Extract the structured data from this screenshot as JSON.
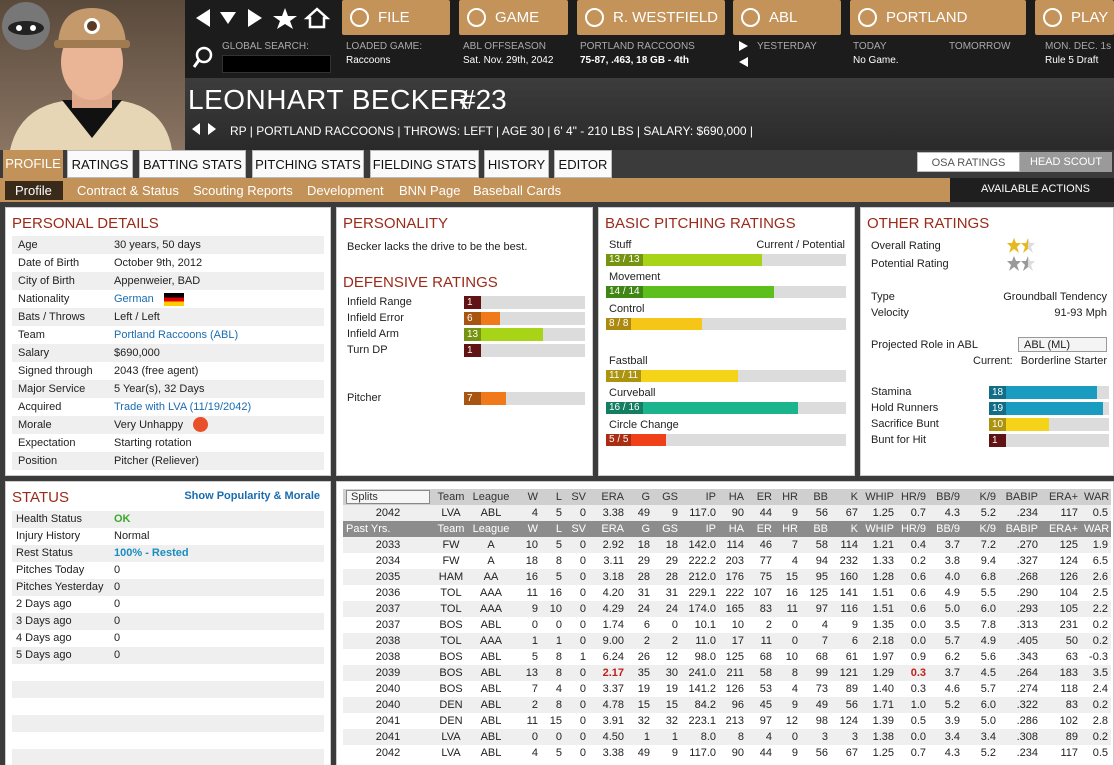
{
  "nav": {
    "buttons": [
      "FILE",
      "GAME",
      "R. WESTFIELD",
      "ABL",
      "PORTLAND",
      "PLAY"
    ]
  },
  "info": {
    "global_search": "GLOBAL SEARCH:",
    "loaded_game_label": "LOADED GAME:",
    "loaded_game": "Raccoons",
    "period": "ABL OFFSEASON",
    "date": "Sat. Nov. 29th, 2042",
    "team": "PORTLAND RACCOONS",
    "record": "75-87, .463, 18 GB - 4th",
    "yesterday": "YESTERDAY",
    "today": "TODAY",
    "today_note": "No Game.",
    "tomorrow": "TOMORROW",
    "next_date": "MON. DEC. 1s",
    "next_event": "Rule 5 Draft"
  },
  "player": {
    "name": "LEONHART BECKER",
    "number": "#23",
    "summary": "RP | PORTLAND RACCOONS | THROWS: LEFT | AGE 30 | 6' 4\" - 210 LBS | SALARY: $690,000 |"
  },
  "tabs": {
    "main": [
      "PROFILE",
      "RATINGS",
      "BATTING STATS",
      "PITCHING STATS",
      "FIELDING STATS",
      "HISTORY",
      "EDITOR"
    ],
    "right": [
      "OSA RATINGS",
      "HEAD SCOUT"
    ],
    "sub": [
      "Profile",
      "Contract & Status",
      "Scouting Reports",
      "Development",
      "BNN Page",
      "Baseball Cards"
    ],
    "actions": "AVAILABLE ACTIONS"
  },
  "personal_details": {
    "title": "PERSONAL DETAILS",
    "rows": [
      [
        "Age",
        "30 years, 50 days"
      ],
      [
        "Date of Birth",
        "October 9th, 2012"
      ],
      [
        "City of Birth",
        "Appenweier, BAD"
      ],
      [
        "Nationality",
        "German"
      ],
      [
        "Bats / Throws",
        "Left / Left"
      ],
      [
        "Team",
        "Portland Raccoons (ABL)"
      ],
      [
        "Salary",
        "$690,000"
      ],
      [
        "Signed through",
        "2043 (free agent)"
      ],
      [
        "Major Service",
        "5 Year(s), 32 Days"
      ],
      [
        "Acquired",
        "Trade with LVA (11/19/2042)"
      ],
      [
        "Morale",
        "Very Unhappy"
      ],
      [
        "Expectation",
        "Starting rotation"
      ],
      [
        "Position",
        "Pitcher (Reliever)"
      ]
    ]
  },
  "personality": {
    "title": "PERSONALITY",
    "text": "Becker lacks the drive to be the best."
  },
  "rating_range": [
    0,
    20
  ],
  "defensive_ratings": {
    "title": "DEFENSIVE RATINGS",
    "rows": [
      {
        "name": "Infield Range",
        "value": 1,
        "color": "#8b1a1a"
      },
      {
        "name": "Infield Error",
        "value": 6,
        "color": "#f07a1a"
      },
      {
        "name": "Infield Arm",
        "value": 13,
        "color": "#a8d418"
      },
      {
        "name": "Turn DP",
        "value": 1,
        "color": "#8b1a1a"
      },
      {
        "name": "Pitcher",
        "value": 7,
        "color": "#f07a1a"
      }
    ]
  },
  "pitching_ratings": {
    "title": "BASIC PITCHING RATINGS",
    "header": "Current / Potential",
    "rows": [
      {
        "name": "Stuff",
        "current": 13,
        "potential": 13,
        "label": "13 / 13",
        "color": "#a8d418"
      },
      {
        "name": "Movement",
        "current": 14,
        "potential": 14,
        "label": "14 / 14",
        "color": "#5cbf1c"
      },
      {
        "name": "Control",
        "current": 8,
        "potential": 8,
        "label": "8 / 8",
        "color": "#f5c518"
      },
      {
        "name": "Fastball",
        "current": 11,
        "potential": 11,
        "label": "11 / 11",
        "color": "#f5d318"
      },
      {
        "name": "Curveball",
        "current": 16,
        "potential": 16,
        "label": "16 / 16",
        "color": "#1cb48c"
      },
      {
        "name": "Circle Change",
        "current": 5,
        "potential": 5,
        "label": "5 / 5",
        "color": "#f0401a"
      }
    ]
  },
  "other_ratings": {
    "title": "OTHER RATINGS",
    "overall_label": "Overall Rating",
    "overall_stars": 1.5,
    "potential_label": "Potential Rating",
    "potential_stars": 1.5,
    "stars_max": 2,
    "type_label": "Type",
    "type": "Groundball Tendency",
    "velocity_label": "Velocity",
    "velocity": "91-93 Mph",
    "role_label": "Projected Role in ABL",
    "role": "ABL (ML)",
    "current_label": "Current:",
    "current_role": "Borderline Starter",
    "rows": [
      {
        "name": "Stamina",
        "value": 18,
        "color": "#1a9cc0"
      },
      {
        "name": "Hold Runners",
        "value": 19,
        "color": "#1a9cc0"
      },
      {
        "name": "Sacrifice Bunt",
        "value": 10,
        "color": "#f5d318"
      },
      {
        "name": "Bunt for Hit",
        "value": 1,
        "color": "#8b1a1a"
      }
    ]
  },
  "status": {
    "title": "STATUS",
    "link": "Show Popularity & Morale",
    "rows": [
      [
        "Health Status",
        "OK"
      ],
      [
        "Injury History",
        "Normal"
      ],
      [
        "Rest Status",
        "100% - Rested"
      ],
      [
        "Pitches Today",
        "0"
      ],
      [
        "Pitches Yesterday",
        "0"
      ],
      [
        "2 Days ago",
        "0"
      ],
      [
        "3 Days ago",
        "0"
      ],
      [
        "4 Days ago",
        "0"
      ],
      [
        "5 Days ago",
        "0"
      ]
    ]
  },
  "stats": {
    "splits": "Splits",
    "past_label": "Past Yrs.",
    "columns": [
      "Team",
      "League",
      "W",
      "L",
      "SV",
      "ERA",
      "G",
      "GS",
      "IP",
      "HA",
      "ER",
      "HR",
      "BB",
      "K",
      "WHIP",
      "HR/9",
      "BB/9",
      "K/9",
      "BABIP",
      "ERA+",
      "WAR"
    ],
    "current": [
      "2042",
      "LVA",
      "ABL",
      "4",
      "5",
      "0",
      "3.38",
      "49",
      "9",
      "117.0",
      "90",
      "44",
      "9",
      "56",
      "67",
      "1.25",
      "0.7",
      "4.3",
      "5.2",
      ".234",
      "117",
      "0.5"
    ],
    "past": [
      [
        "2033",
        "FW",
        "A",
        "10",
        "5",
        "0",
        "2.92",
        "18",
        "18",
        "142.0",
        "114",
        "46",
        "7",
        "58",
        "114",
        "1.21",
        "0.4",
        "3.7",
        "7.2",
        ".270",
        "125",
        "1.9"
      ],
      [
        "2034",
        "FW",
        "A",
        "18",
        "8",
        "0",
        "3.11",
        "29",
        "29",
        "222.2",
        "203",
        "77",
        "4",
        "94",
        "232",
        "1.33",
        "0.2",
        "3.8",
        "9.4",
        ".327",
        "124",
        "6.5"
      ],
      [
        "2035",
        "HAM",
        "AA",
        "16",
        "5",
        "0",
        "3.18",
        "28",
        "28",
        "212.0",
        "176",
        "75",
        "15",
        "95",
        "160",
        "1.28",
        "0.6",
        "4.0",
        "6.8",
        ".268",
        "126",
        "2.6"
      ],
      [
        "2036",
        "TOL",
        "AAA",
        "11",
        "16",
        "0",
        "4.20",
        "31",
        "31",
        "229.1",
        "222",
        "107",
        "16",
        "125",
        "141",
        "1.51",
        "0.6",
        "4.9",
        "5.5",
        ".290",
        "104",
        "2.5"
      ],
      [
        "2037",
        "TOL",
        "AAA",
        "9",
        "10",
        "0",
        "4.29",
        "24",
        "24",
        "174.0",
        "165",
        "83",
        "11",
        "97",
        "116",
        "1.51",
        "0.6",
        "5.0",
        "6.0",
        ".293",
        "105",
        "2.2"
      ],
      [
        "2037",
        "BOS",
        "ABL",
        "0",
        "0",
        "0",
        "1.74",
        "6",
        "0",
        "10.1",
        "10",
        "2",
        "0",
        "4",
        "9",
        "1.35",
        "0.0",
        "3.5",
        "7.8",
        ".313",
        "231",
        "0.2"
      ],
      [
        "2038",
        "TOL",
        "AAA",
        "1",
        "1",
        "0",
        "9.00",
        "2",
        "2",
        "11.0",
        "17",
        "11",
        "0",
        "7",
        "6",
        "2.18",
        "0.0",
        "5.7",
        "4.9",
        ".405",
        "50",
        "0.2"
      ],
      [
        "2038",
        "BOS",
        "ABL",
        "5",
        "8",
        "1",
        "6.24",
        "26",
        "12",
        "98.0",
        "125",
        "68",
        "10",
        "68",
        "61",
        "1.97",
        "0.9",
        "6.2",
        "5.6",
        ".343",
        "63",
        "-0.3"
      ],
      [
        "2039",
        "BOS",
        "ABL",
        "13",
        "8",
        "0",
        "2.17",
        "35",
        "30",
        "241.0",
        "211",
        "58",
        "8",
        "99",
        "121",
        "1.29",
        "0.3",
        "3.7",
        "4.5",
        ".264",
        "183",
        "3.5"
      ],
      [
        "2040",
        "BOS",
        "ABL",
        "7",
        "4",
        "0",
        "3.37",
        "19",
        "19",
        "141.2",
        "126",
        "53",
        "4",
        "73",
        "89",
        "1.40",
        "0.3",
        "4.6",
        "5.7",
        ".274",
        "118",
        "2.4"
      ],
      [
        "2040",
        "DEN",
        "ABL",
        "2",
        "8",
        "0",
        "4.78",
        "15",
        "15",
        "84.2",
        "96",
        "45",
        "9",
        "49",
        "56",
        "1.71",
        "1.0",
        "5.2",
        "6.0",
        ".322",
        "83",
        "0.2"
      ],
      [
        "2041",
        "DEN",
        "ABL",
        "11",
        "15",
        "0",
        "3.91",
        "32",
        "32",
        "223.1",
        "213",
        "97",
        "12",
        "98",
        "124",
        "1.39",
        "0.5",
        "3.9",
        "5.0",
        ".286",
        "102",
        "2.8"
      ],
      [
        "2041",
        "LVA",
        "ABL",
        "0",
        "0",
        "0",
        "4.50",
        "1",
        "1",
        "8.0",
        "8",
        "4",
        "0",
        "3",
        "3",
        "1.38",
        "0.0",
        "3.4",
        "3.4",
        ".308",
        "89",
        "0.2"
      ],
      [
        "2042",
        "LVA",
        "ABL",
        "4",
        "5",
        "0",
        "3.38",
        "49",
        "9",
        "117.0",
        "90",
        "44",
        "9",
        "56",
        "67",
        "1.25",
        "0.7",
        "4.3",
        "5.2",
        ".234",
        "117",
        "0.5"
      ]
    ]
  }
}
